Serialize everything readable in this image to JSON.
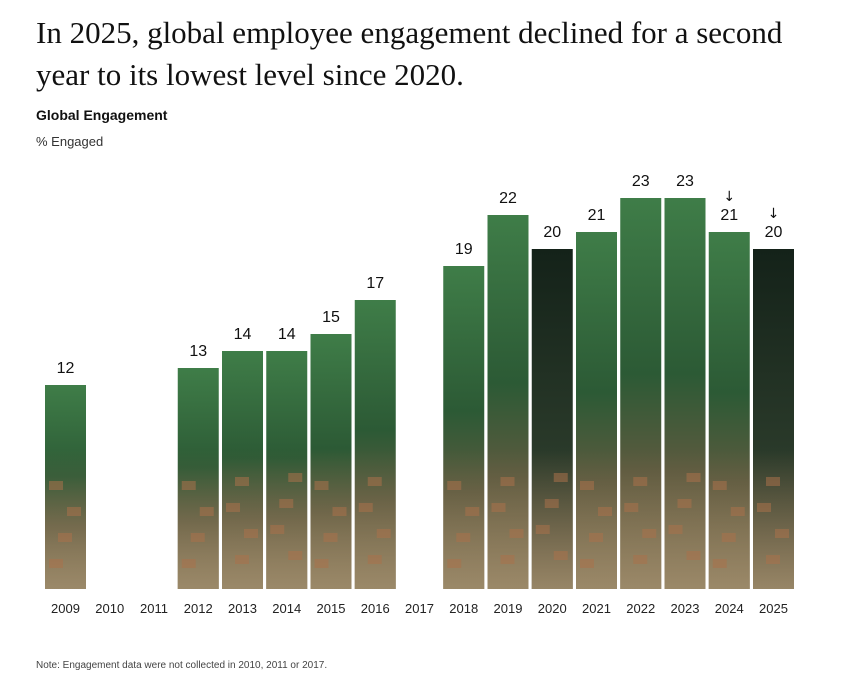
{
  "headline": "In 2025, global employee engagement declined for a second year to its lowest level since 2020.",
  "note": "Note: Engagement data were not collected in 2010, 2011 or 2017.",
  "colors": {
    "bar_green": "#2f6a3c",
    "bar_green_light": "#4e8a55",
    "bar_dark": "#17271c",
    "ground": "#9c8a6a",
    "brick": "#a9714a",
    "label": "#111111",
    "axis_label": "#222222"
  },
  "chart_data": {
    "type": "bar",
    "title": "Global Engagement",
    "ylabel": "% Engaged",
    "categories": [
      "2009",
      "2010",
      "2011",
      "2012",
      "2013",
      "2014",
      "2015",
      "2016",
      "2017",
      "2018",
      "2019",
      "2020",
      "2021",
      "2022",
      "2023",
      "2024",
      "2025"
    ],
    "values": [
      12,
      null,
      null,
      13,
      14,
      14,
      15,
      17,
      null,
      19,
      22,
      20,
      21,
      23,
      23,
      21,
      20
    ],
    "decline_markers": [
      "2024",
      "2025"
    ],
    "marker_symbol": "↓",
    "ylim": [
      0,
      23
    ],
    "grid": false,
    "legend": "none"
  }
}
